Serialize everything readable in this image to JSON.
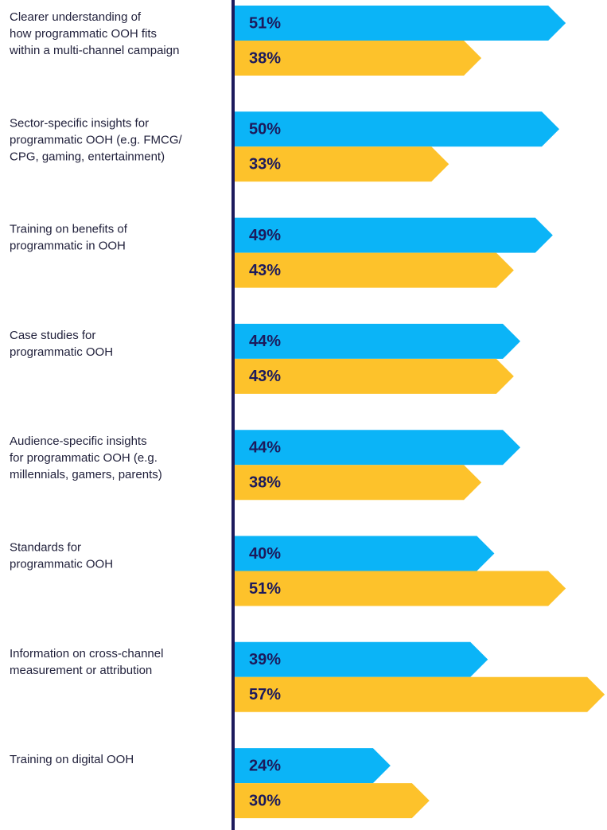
{
  "chart_data": {
    "type": "arrow-bar",
    "categories": [
      "Clearer understanding of\nhow programmatic OOH fits\nwithin a multi-channel campaign",
      "Sector-specific insights for\nprogrammatic OOH (e.g. FMCG/\nCPG, gaming, entertainment)",
      "Training on benefits of\nprogrammatic in OOH",
      "Case studies for\nprogrammatic OOH",
      "Audience-specific insights\nfor programmatic OOH (e.g.\nmillennials, gamers, parents)",
      "Standards for\nprogrammatic OOH",
      "Information on cross-channel\nmeasurement or attribution",
      "Training on digital OOH"
    ],
    "series": [
      {
        "color": "#0bb4f7",
        "values": [
          51,
          50,
          49,
          44,
          44,
          40,
          39,
          24
        ],
        "value_labels": [
          "51%",
          "50%",
          "49%",
          "44%",
          "44%",
          "40%",
          "39%",
          "24%"
        ]
      },
      {
        "color": "#fdc22b",
        "values": [
          38,
          33,
          43,
          43,
          38,
          51,
          57,
          30
        ],
        "value_labels": [
          "38%",
          "33%",
          "43%",
          "43%",
          "38%",
          "51%",
          "57%",
          "30%"
        ]
      }
    ]
  }
}
